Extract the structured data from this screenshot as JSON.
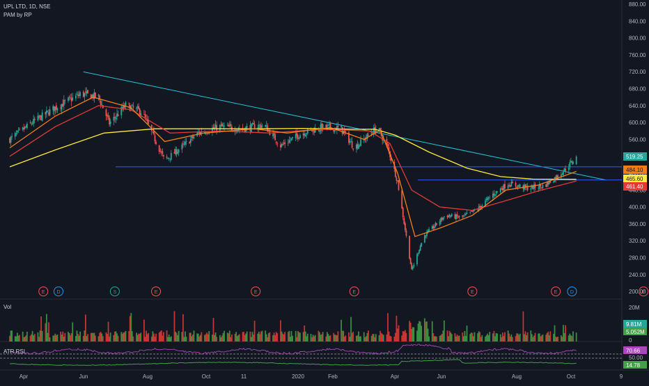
{
  "header": {
    "symbol_line": "UPL LTD, 1D, NSE",
    "indicator_line": "PAM by RP"
  },
  "panes": {
    "volume_label": "Vol",
    "rsi_label": "ATR RSI"
  },
  "colors": {
    "background": "#131722",
    "up": "#26a69a",
    "down": "#ef5350",
    "ema_fast": "#f57f17",
    "ema_mid": "#e53935",
    "ema_slow": "#ffeb3b",
    "trendline": "#26c6da",
    "hline": "#2962ff",
    "vol_up": "#43a047",
    "vol_down": "#e53935",
    "rsi_line": "#ab47bc",
    "atr_line": "#43a047"
  },
  "chart_data": {
    "type": "candlestick",
    "symbol": "UPL LTD",
    "interval": "1D",
    "exchange": "NSE",
    "x_ticks": [
      "Apr",
      "Jun",
      "Aug",
      "Oct",
      "11",
      "2020",
      "Feb",
      "Apr",
      "Jun",
      "Aug",
      "Oct",
      "9"
    ],
    "price_axis": {
      "ticks": [
        "880.00",
        "840.00",
        "800.00",
        "760.00",
        "720.00",
        "680.00",
        "640.00",
        "600.00",
        "560.00",
        "520.00",
        "480.00",
        "440.00",
        "400.00",
        "360.00",
        "320.00",
        "280.00",
        "240.00",
        "200.00"
      ],
      "ylim": [
        182,
        890
      ]
    },
    "price_labels": [
      {
        "value": "519.25",
        "color": "#26a69a"
      },
      {
        "value": "484.10",
        "color": "#f57f17"
      },
      {
        "value": "465.60",
        "color": "#ffeb3b"
      },
      {
        "value": "461.40",
        "color": "#e53935"
      }
    ],
    "horizontal_levels": [
      495,
      464
    ],
    "trendline": {
      "start": [
        "2019-05-27",
        720
      ],
      "end": [
        "2020-09-20",
        464
      ]
    },
    "close_path": [
      [
        "2019-03-20",
        560
      ],
      [
        "2019-04-10",
        600
      ],
      [
        "2019-05-01",
        635
      ],
      [
        "2019-05-25",
        668
      ],
      [
        "2019-06-10",
        660
      ],
      [
        "2019-06-20",
        598
      ],
      [
        "2019-07-05",
        640
      ],
      [
        "2019-07-20",
        625
      ],
      [
        "2019-08-01",
        560
      ],
      [
        "2019-08-10",
        510
      ],
      [
        "2019-08-25",
        540
      ],
      [
        "2019-09-10",
        575
      ],
      [
        "2019-09-30",
        590
      ],
      [
        "2019-10-20",
        585
      ],
      [
        "2019-11-10",
        594
      ],
      [
        "2019-11-25",
        545
      ],
      [
        "2019-12-15",
        575
      ],
      [
        "2020-01-05",
        590
      ],
      [
        "2020-01-20",
        585
      ],
      [
        "2020-02-01",
        540
      ],
      [
        "2020-02-10",
        560
      ],
      [
        "2020-02-22",
        588
      ],
      [
        "2020-03-03",
        540
      ],
      [
        "2020-03-12",
        460
      ],
      [
        "2020-03-20",
        330
      ],
      [
        "2020-03-25",
        250
      ],
      [
        "2020-04-05",
        330
      ],
      [
        "2020-04-25",
        380
      ],
      [
        "2020-05-10",
        375
      ],
      [
        "2020-05-25",
        395
      ],
      [
        "2020-06-08",
        430
      ],
      [
        "2020-06-22",
        455
      ],
      [
        "2020-07-10",
        445
      ],
      [
        "2020-07-25",
        450
      ],
      [
        "2020-08-05",
        470
      ],
      [
        "2020-08-15",
        492
      ],
      [
        "2020-08-24",
        519.25
      ]
    ],
    "ema_slow": [
      [
        "2019-03-20",
        495
      ],
      [
        "2019-05-01",
        535
      ],
      [
        "2019-06-15",
        575
      ],
      [
        "2019-08-01",
        585
      ],
      [
        "2019-09-15",
        585
      ],
      [
        "2019-11-01",
        585
      ],
      [
        "2019-12-15",
        586
      ],
      [
        "2020-02-01",
        584
      ],
      [
        "2020-02-20",
        584
      ],
      [
        "2020-03-10",
        570
      ],
      [
        "2020-04-10",
        530
      ],
      [
        "2020-05-15",
        492
      ],
      [
        "2020-06-15",
        472
      ],
      [
        "2020-07-15",
        466
      ],
      [
        "2020-08-24",
        465.6
      ]
    ],
    "ema_mid": [
      [
        "2019-03-20",
        520
      ],
      [
        "2019-05-01",
        590
      ],
      [
        "2019-06-10",
        640
      ],
      [
        "2019-07-10",
        630
      ],
      [
        "2019-08-15",
        575
      ],
      [
        "2019-10-01",
        580
      ],
      [
        "2019-11-15",
        575
      ],
      [
        "2020-01-01",
        584
      ],
      [
        "2020-02-15",
        580
      ],
      [
        "2020-03-05",
        550
      ],
      [
        "2020-03-25",
        440
      ],
      [
        "2020-04-20",
        400
      ],
      [
        "2020-05-20",
        392
      ],
      [
        "2020-06-20",
        415
      ],
      [
        "2020-07-20",
        438
      ],
      [
        "2020-08-24",
        461.4
      ]
    ],
    "ema_fast": [
      [
        "2019-03-20",
        540
      ],
      [
        "2019-05-01",
        615
      ],
      [
        "2019-06-05",
        660
      ],
      [
        "2019-07-10",
        635
      ],
      [
        "2019-08-10",
        555
      ],
      [
        "2019-09-15",
        575
      ],
      [
        "2019-11-01",
        585
      ],
      [
        "2019-12-01",
        575
      ],
      [
        "2020-01-10",
        588
      ],
      [
        "2020-02-10",
        560
      ],
      [
        "2020-02-25",
        582
      ],
      [
        "2020-03-12",
        480
      ],
      [
        "2020-03-28",
        330
      ],
      [
        "2020-04-20",
        350
      ],
      [
        "2020-05-20",
        380
      ],
      [
        "2020-06-20",
        440
      ],
      [
        "2020-07-20",
        452
      ],
      [
        "2020-08-24",
        484.1
      ]
    ],
    "event_markers": [
      {
        "date": "2019-04-20",
        "letter": "E",
        "color": "#ef5350"
      },
      {
        "date": "2019-05-04",
        "letter": "D",
        "color": "#2196f3"
      },
      {
        "date": "2019-06-25",
        "letter": "S",
        "color": "#26a69a"
      },
      {
        "date": "2019-08-02",
        "letter": "E",
        "color": "#ef5350"
      },
      {
        "date": "2019-11-02",
        "letter": "E",
        "color": "#ef5350"
      },
      {
        "date": "2020-02-01",
        "letter": "E",
        "color": "#ef5350"
      },
      {
        "date": "2020-05-20",
        "letter": "E",
        "color": "#ef5350"
      },
      {
        "date": "2020-08-05",
        "letter": "E",
        "color": "#ef5350"
      },
      {
        "date": "2020-08-20",
        "letter": "D",
        "color": "#2196f3"
      },
      {
        "date": "2020-10-25",
        "letter": "E",
        "color": "#ef5350"
      }
    ],
    "volume": {
      "ticks": [
        "20M",
        "0"
      ],
      "labels": [
        {
          "value": "9.81M",
          "color": "#26a69a"
        },
        {
          "value": "5.052M",
          "color": "#43a047"
        }
      ]
    },
    "rsi": {
      "ticks": [
        "50.00"
      ],
      "labels": [
        {
          "value": "70.66",
          "color": "#ab47bc"
        },
        {
          "value": "14.78",
          "color": "#43a047"
        }
      ]
    },
    "date_range": [
      "2019-03-20",
      "2020-08-24"
    ]
  }
}
